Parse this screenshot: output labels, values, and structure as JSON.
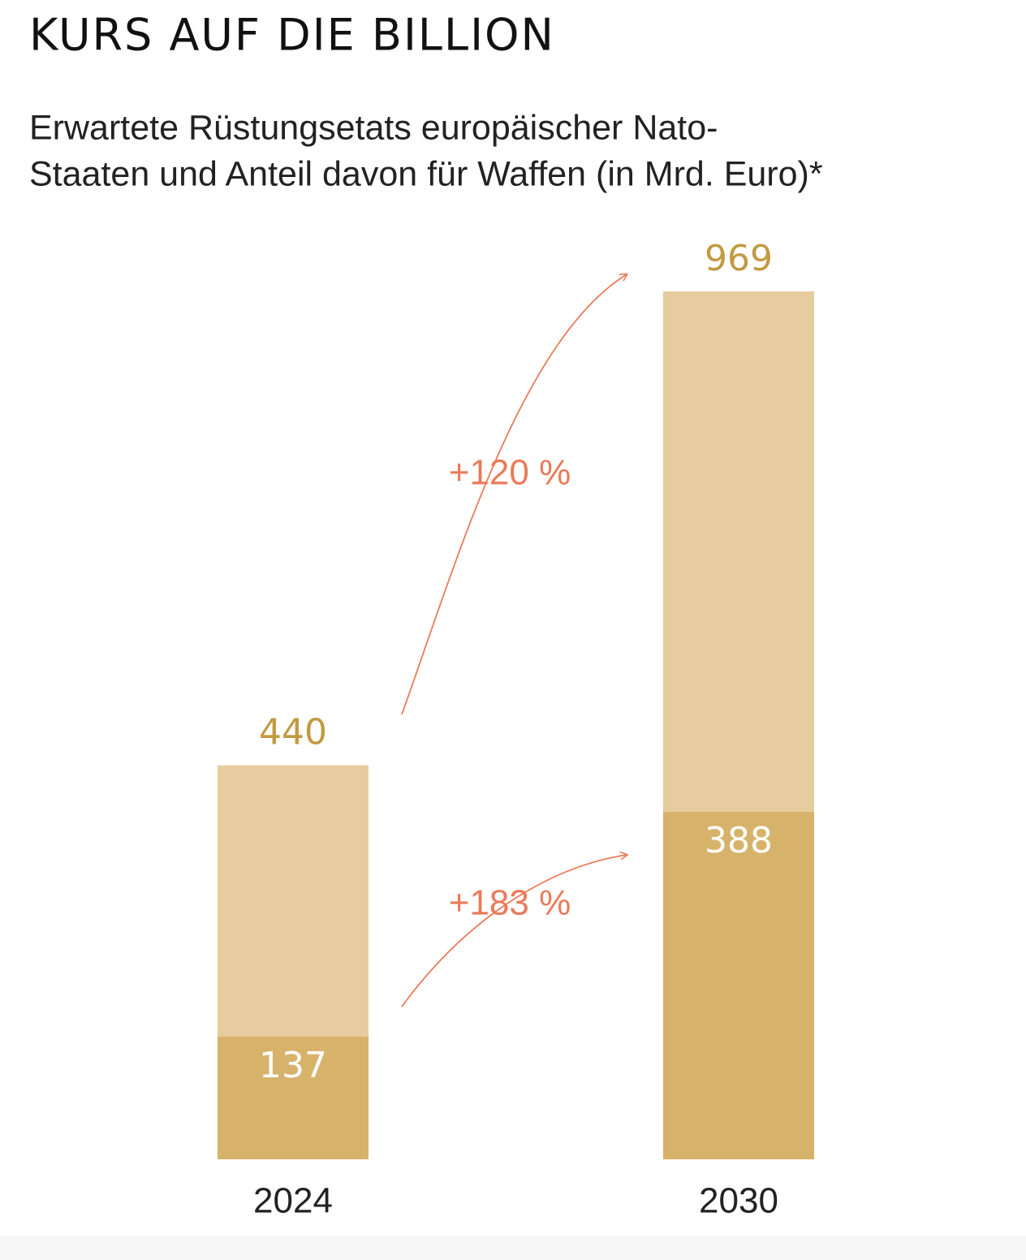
{
  "chart_data": {
    "type": "bar",
    "mode": "overlay",
    "title": "KURS AUF DIE BILLION",
    "subtitle": [
      "Erwartete Rüstungsetats europäischer Nato-",
      "Staaten und Anteil davon für Waffen (in Mrd. Euro)*"
    ],
    "categories": [
      "2024",
      "2030"
    ],
    "series": [
      {
        "color": "#e6cc9e",
        "label_color": "#c29a3f",
        "values": [
          440,
          969
        ]
      },
      {
        "color": "#d7b26a",
        "label_color": "#ffffff",
        "values": [
          137,
          388
        ]
      }
    ],
    "annotations": [
      "+120 %",
      "+183 %"
    ],
    "annotation_color": "#ea7b5a"
  }
}
